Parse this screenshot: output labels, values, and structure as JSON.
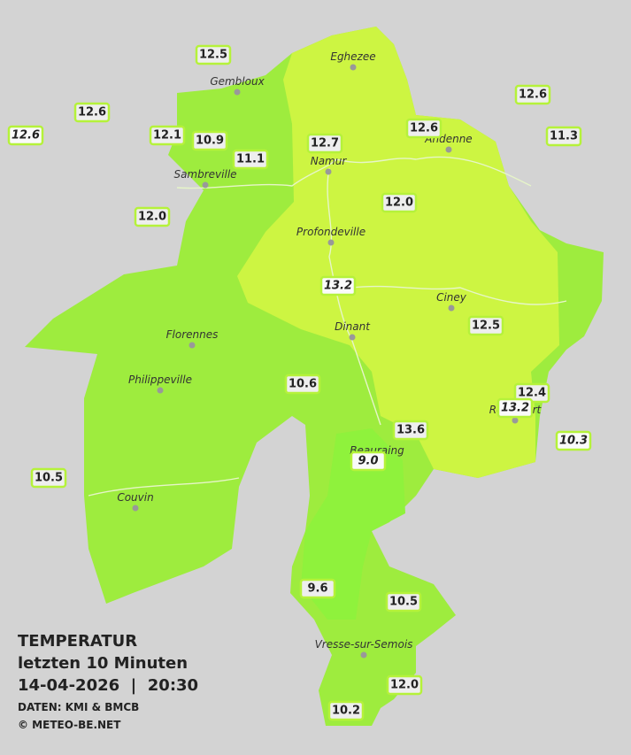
{
  "legend": {
    "title": "TEMPERATUR",
    "subtitle": "letzten 10 Minuten",
    "datetime": "14-04-2026  |  20:30",
    "source": "DATEN: KMI & BMCB",
    "copyright": "© METEO-BE.NET"
  },
  "towns": [
    "Eghezee",
    "Gembloux",
    "Andenne",
    "Namur",
    "Sambreville",
    "Profondeville",
    "Ciney",
    "Dinant",
    "Florennes",
    "Philippeville",
    "Rochefort",
    "Beauraing",
    "Couvin",
    "Vresse-sur-Semois"
  ],
  "stations": [
    {
      "label": "12.5",
      "italic": false
    },
    {
      "label": "12.6",
      "italic": false
    },
    {
      "label": "12.6",
      "italic": true
    },
    {
      "label": "12.1",
      "italic": false
    },
    {
      "label": "10.9",
      "italic": false
    },
    {
      "label": "11.1",
      "italic": false
    },
    {
      "label": "12.7",
      "italic": false
    },
    {
      "label": "12.6",
      "italic": false
    },
    {
      "label": "12.6",
      "italic": false
    },
    {
      "label": "11.3",
      "italic": false
    },
    {
      "label": "12.0",
      "italic": false
    },
    {
      "label": "12.0",
      "italic": false
    },
    {
      "label": "13.2",
      "italic": true
    },
    {
      "label": "12.5",
      "italic": false
    },
    {
      "label": "10.6",
      "italic": false
    },
    {
      "label": "12.4",
      "italic": false
    },
    {
      "label": "13.2",
      "italic": true
    },
    {
      "label": "10.3",
      "italic": true
    },
    {
      "label": "13.6",
      "italic": false
    },
    {
      "label": "9.0",
      "italic": true
    },
    {
      "label": "10.5",
      "italic": false
    },
    {
      "label": "9.6",
      "italic": false
    },
    {
      "label": "10.5",
      "italic": false
    },
    {
      "label": "12.0",
      "italic": false
    },
    {
      "label": "10.2",
      "italic": false
    }
  ]
}
